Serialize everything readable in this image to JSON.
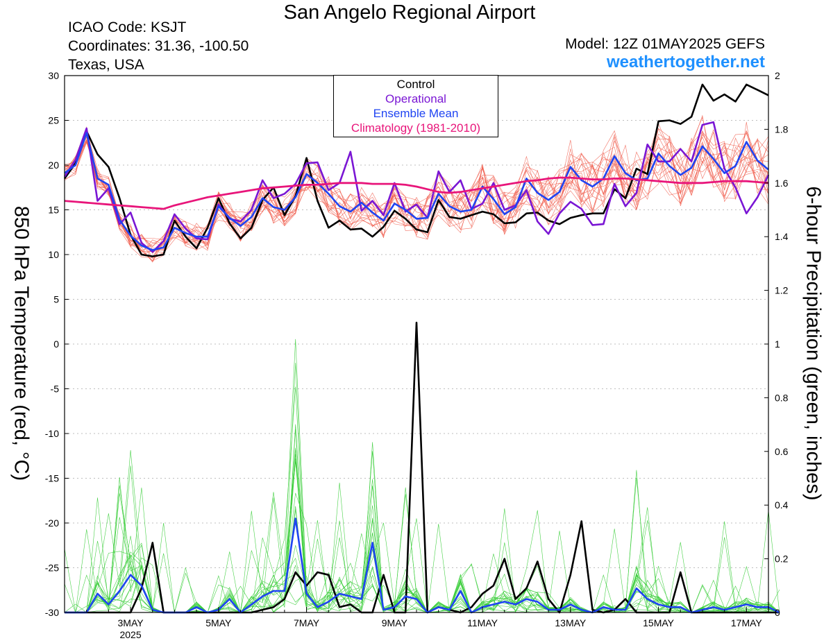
{
  "title": "San Angelo Regional Airport",
  "info": {
    "icao": "ICAO Code: KSJT",
    "coords": "Coordinates: 31.36, -100.50",
    "region": "Texas, USA",
    "model": "Model: 12Z 01MAY2025 GEFS",
    "site": "weathertogether.net"
  },
  "colors": {
    "members_temp": "#f05a4a",
    "members_precip": "#33cc33",
    "control": "#000000",
    "operational": "#7a16d4",
    "mean": "#1f44f2",
    "climatology": "#e8157a",
    "site": "#1e90ff"
  },
  "chart_data": {
    "type": "line",
    "title": "San Angelo Regional Airport",
    "ylabel_left": "850 hPa Temperature (red, °C)",
    "ylabel_right": "6-hour Precipitation (green, inches)",
    "ylim_left": [
      -30,
      30
    ],
    "ylim_right": [
      0,
      2
    ],
    "yticks_left": [
      30,
      25,
      20,
      15,
      10,
      5,
      0,
      -5,
      -10,
      -15,
      -20,
      -25,
      -30
    ],
    "yticks_right": [
      2,
      1.8,
      1.6,
      1.4,
      1.2,
      1,
      0.8,
      0.6,
      0.4,
      0.2,
      0
    ],
    "x_start": "2025-05-01T12Z",
    "x_step_hours": 6,
    "xticks": [
      {
        "label": "3MAY",
        "sub": "2025",
        "hours": 36
      },
      {
        "label": "5MAY",
        "sub": "",
        "hours": 84
      },
      {
        "label": "7MAY",
        "sub": "",
        "hours": 132
      },
      {
        "label": "9MAY",
        "sub": "",
        "hours": 180
      },
      {
        "label": "11MAY",
        "sub": "",
        "hours": 228
      },
      {
        "label": "13MAY",
        "sub": "",
        "hours": 276
      },
      {
        "label": "15MAY",
        "sub": "",
        "hours": 324
      },
      {
        "label": "17MAY",
        "sub": "",
        "hours": 372
      }
    ],
    "grid": true,
    "legend": {
      "position": "top-center",
      "entries": [
        {
          "label": "Control",
          "color": "#000000"
        },
        {
          "label": "Operational",
          "color": "#7a16d4"
        },
        {
          "label": "Ensemble Mean",
          "color": "#1f44f2"
        },
        {
          "label": "Climatology (1981-2010)",
          "color": "#e8157a"
        }
      ]
    },
    "series": [
      {
        "name": "Control",
        "axis": "left",
        "values": [
          18.5,
          20.2,
          23.8,
          21.2,
          19.8,
          16.3,
          12.2,
          10.0,
          9.8,
          10.0,
          13.8,
          12.0,
          10.7,
          13.0,
          16.3,
          13.5,
          11.8,
          13.0,
          16.1,
          17.5,
          14.4,
          16.5,
          20.8,
          16.0,
          13.0,
          13.8,
          12.8,
          12.9,
          12.0,
          13.1,
          14.9,
          14.0,
          12.8,
          12.5,
          16.1,
          14.2,
          14.0,
          14.4,
          14.8,
          14.5,
          13.5,
          13.6,
          14.6,
          14.7,
          13.8,
          13.4,
          14.1,
          14.4,
          14.6,
          14.6,
          17.3,
          16.3,
          19.6,
          19.0,
          24.9,
          25.0,
          24.6,
          25.4,
          29.0,
          27.2,
          27.9,
          27.1,
          29.0,
          28.4,
          27.8
        ]
      },
      {
        "name": "Operational",
        "axis": "left",
        "values": [
          18.7,
          20.6,
          24.1,
          16.0,
          17.4,
          13.4,
          14.7,
          11.3,
          10.3,
          11.5,
          14.5,
          12.9,
          11.8,
          11.7,
          15.6,
          14.0,
          13.7,
          15.0,
          18.3,
          16.3,
          16.8,
          17.9,
          20.2,
          20.3,
          17.2,
          18.0,
          21.5,
          14.9,
          16.0,
          14.4,
          18.0,
          14.8,
          15.6,
          14.1,
          19.3,
          17.0,
          18.3,
          15.1,
          15.7,
          18.0,
          15.0,
          15.5,
          17.2,
          13.7,
          12.3,
          14.6,
          15.9,
          15.1,
          13.3,
          13.4,
          17.9,
          15.4,
          16.9,
          22.3,
          20.4,
          20.4,
          21.8,
          20.4,
          24.5,
          24.8,
          19.6,
          17.5,
          14.6,
          16.4,
          18.9
        ]
      },
      {
        "name": "Ensemble Mean",
        "axis": "left",
        "values": [
          19.1,
          20.0,
          23.6,
          18.5,
          17.8,
          13.9,
          12.1,
          11.0,
          10.5,
          10.8,
          13.0,
          12.4,
          12.0,
          12.0,
          15.4,
          14.1,
          13.2,
          14.2,
          16.3,
          15.3,
          15.0,
          16.4,
          19.0,
          18.0,
          16.8,
          15.4,
          14.8,
          15.8,
          14.7,
          13.8,
          15.7,
          15.0,
          14.0,
          14.1,
          16.8,
          15.4,
          14.8,
          15.0,
          17.6,
          16.2,
          14.5,
          15.3,
          18.5,
          16.9,
          16.1,
          17.0,
          19.8,
          18.3,
          17.6,
          18.5,
          21.0,
          19.1,
          18.3,
          18.5,
          21.3,
          19.9,
          18.9,
          19.7,
          22.1,
          20.7,
          19.1,
          19.9,
          22.6,
          20.5,
          19.5
        ]
      },
      {
        "name": "Climatology (1981-2010)",
        "axis": "left",
        "values": [
          16.0,
          15.9,
          15.8,
          15.7,
          15.6,
          15.5,
          15.4,
          15.3,
          15.2,
          15.1,
          15.5,
          15.8,
          16.1,
          16.4,
          16.6,
          16.8,
          17.0,
          17.2,
          17.4,
          17.5,
          17.6,
          17.7,
          17.8,
          17.8,
          17.9,
          18.0,
          18.0,
          18.0,
          17.9,
          17.9,
          17.9,
          17.8,
          17.6,
          17.3,
          17.0,
          16.9,
          17.0,
          17.2,
          17.4,
          17.6,
          17.8,
          18.0,
          18.2,
          18.3,
          18.5,
          18.6,
          18.6,
          18.5,
          18.4,
          18.4,
          18.5,
          18.5,
          18.4,
          18.3,
          18.2,
          18.1,
          18.0,
          18.0,
          18.0,
          18.1,
          18.2,
          18.2,
          18.2,
          18.1,
          18.0
        ]
      },
      {
        "name": "Control",
        "axis": "right",
        "values": [
          0,
          0,
          0,
          0,
          0,
          0,
          0,
          0.09,
          0.26,
          0,
          0,
          0,
          0,
          0,
          0,
          0,
          0,
          0,
          0.01,
          0.02,
          0.05,
          0.15,
          0.1,
          0.15,
          0.14,
          0.02,
          0.03,
          0,
          0,
          0.14,
          0,
          0,
          1.08,
          0,
          0.02,
          0.01,
          0,
          0.02,
          0.07,
          0.1,
          0.2,
          0.05,
          0.09,
          0.19,
          0.05,
          0,
          0.14,
          0.34,
          0.01,
          0,
          0.01,
          0.05,
          0,
          0,
          0,
          0,
          0.15,
          0,
          0,
          0,
          0,
          0,
          0,
          0,
          0,
          0
        ]
      },
      {
        "name": "Ensemble Mean",
        "axis": "right",
        "values": [
          0,
          0,
          0,
          0.07,
          0.03,
          0.08,
          0.14,
          0.1,
          0.01,
          0,
          0,
          0,
          0.02,
          0,
          0.01,
          0.05,
          0,
          0.03,
          0.06,
          0.08,
          0.08,
          0.35,
          0.07,
          0.02,
          0.04,
          0.07,
          0.06,
          0.05,
          0.26,
          0.01,
          0.02,
          0.06,
          0.05,
          0,
          0.02,
          0.01,
          0.08,
          0,
          0.02,
          0.03,
          0.04,
          0.03,
          0.05,
          0.04,
          0.01,
          0.01,
          0.03,
          0.01,
          0,
          0.02,
          0.01,
          0.01,
          0.09,
          0.05,
          0.03,
          0.02,
          0.02,
          0,
          0.01,
          0.02,
          0.01,
          0.02,
          0.03,
          0.02,
          0.02,
          0
        ]
      }
    ]
  }
}
